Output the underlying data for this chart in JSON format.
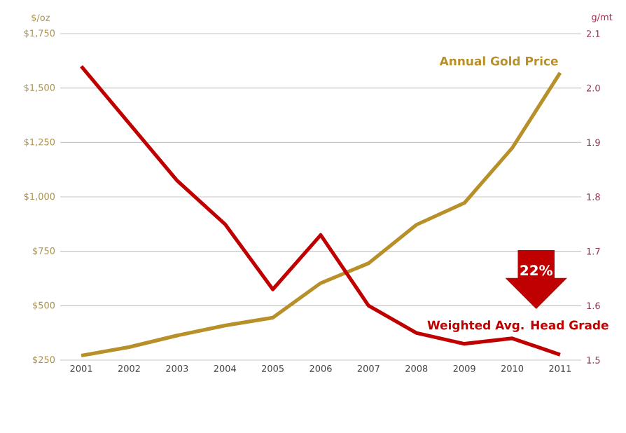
{
  "chart_data": {
    "type": "line",
    "categories": [
      "2001",
      "2002",
      "2003",
      "2004",
      "2005",
      "2006",
      "2007",
      "2008",
      "2009",
      "2010",
      "2011"
    ],
    "series": [
      {
        "name": "Annual Gold Price",
        "color": "#b8902a",
        "values": [
          271,
          310,
          363,
          409,
          445,
          604,
          695,
          872,
          972,
          1225,
          1570
        ]
      },
      {
        "name": "Weighted Avg. Head Grade",
        "color": "#c00000",
        "axis": "y2",
        "values": [
          2.04,
          1.935,
          1.83,
          1.75,
          1.63,
          1.73,
          1.6,
          1.55,
          1.53,
          1.54,
          1.51
        ]
      }
    ],
    "ylabel": "$/oz",
    "y2label": "g/mt",
    "ylim": [
      250,
      1750
    ],
    "yticks": [
      {
        "value": 250,
        "label": "$250"
      },
      {
        "value": 500,
        "label": "$500"
      },
      {
        "value": 750,
        "label": "$750"
      },
      {
        "value": 1000,
        "label": "$1,000"
      },
      {
        "value": 1250,
        "label": "$1,250"
      },
      {
        "value": 1500,
        "label": "$1,500"
      },
      {
        "value": 1750,
        "label": "$1,750"
      }
    ],
    "y2lim": [
      1.5,
      2.1
    ],
    "y2ticks": [
      1.5,
      1.6,
      1.7,
      1.8,
      1.9,
      {
        "value": 2,
        "label": "2.0"
      },
      2.1
    ],
    "grid": "y",
    "annotations": [
      "22%"
    ]
  }
}
